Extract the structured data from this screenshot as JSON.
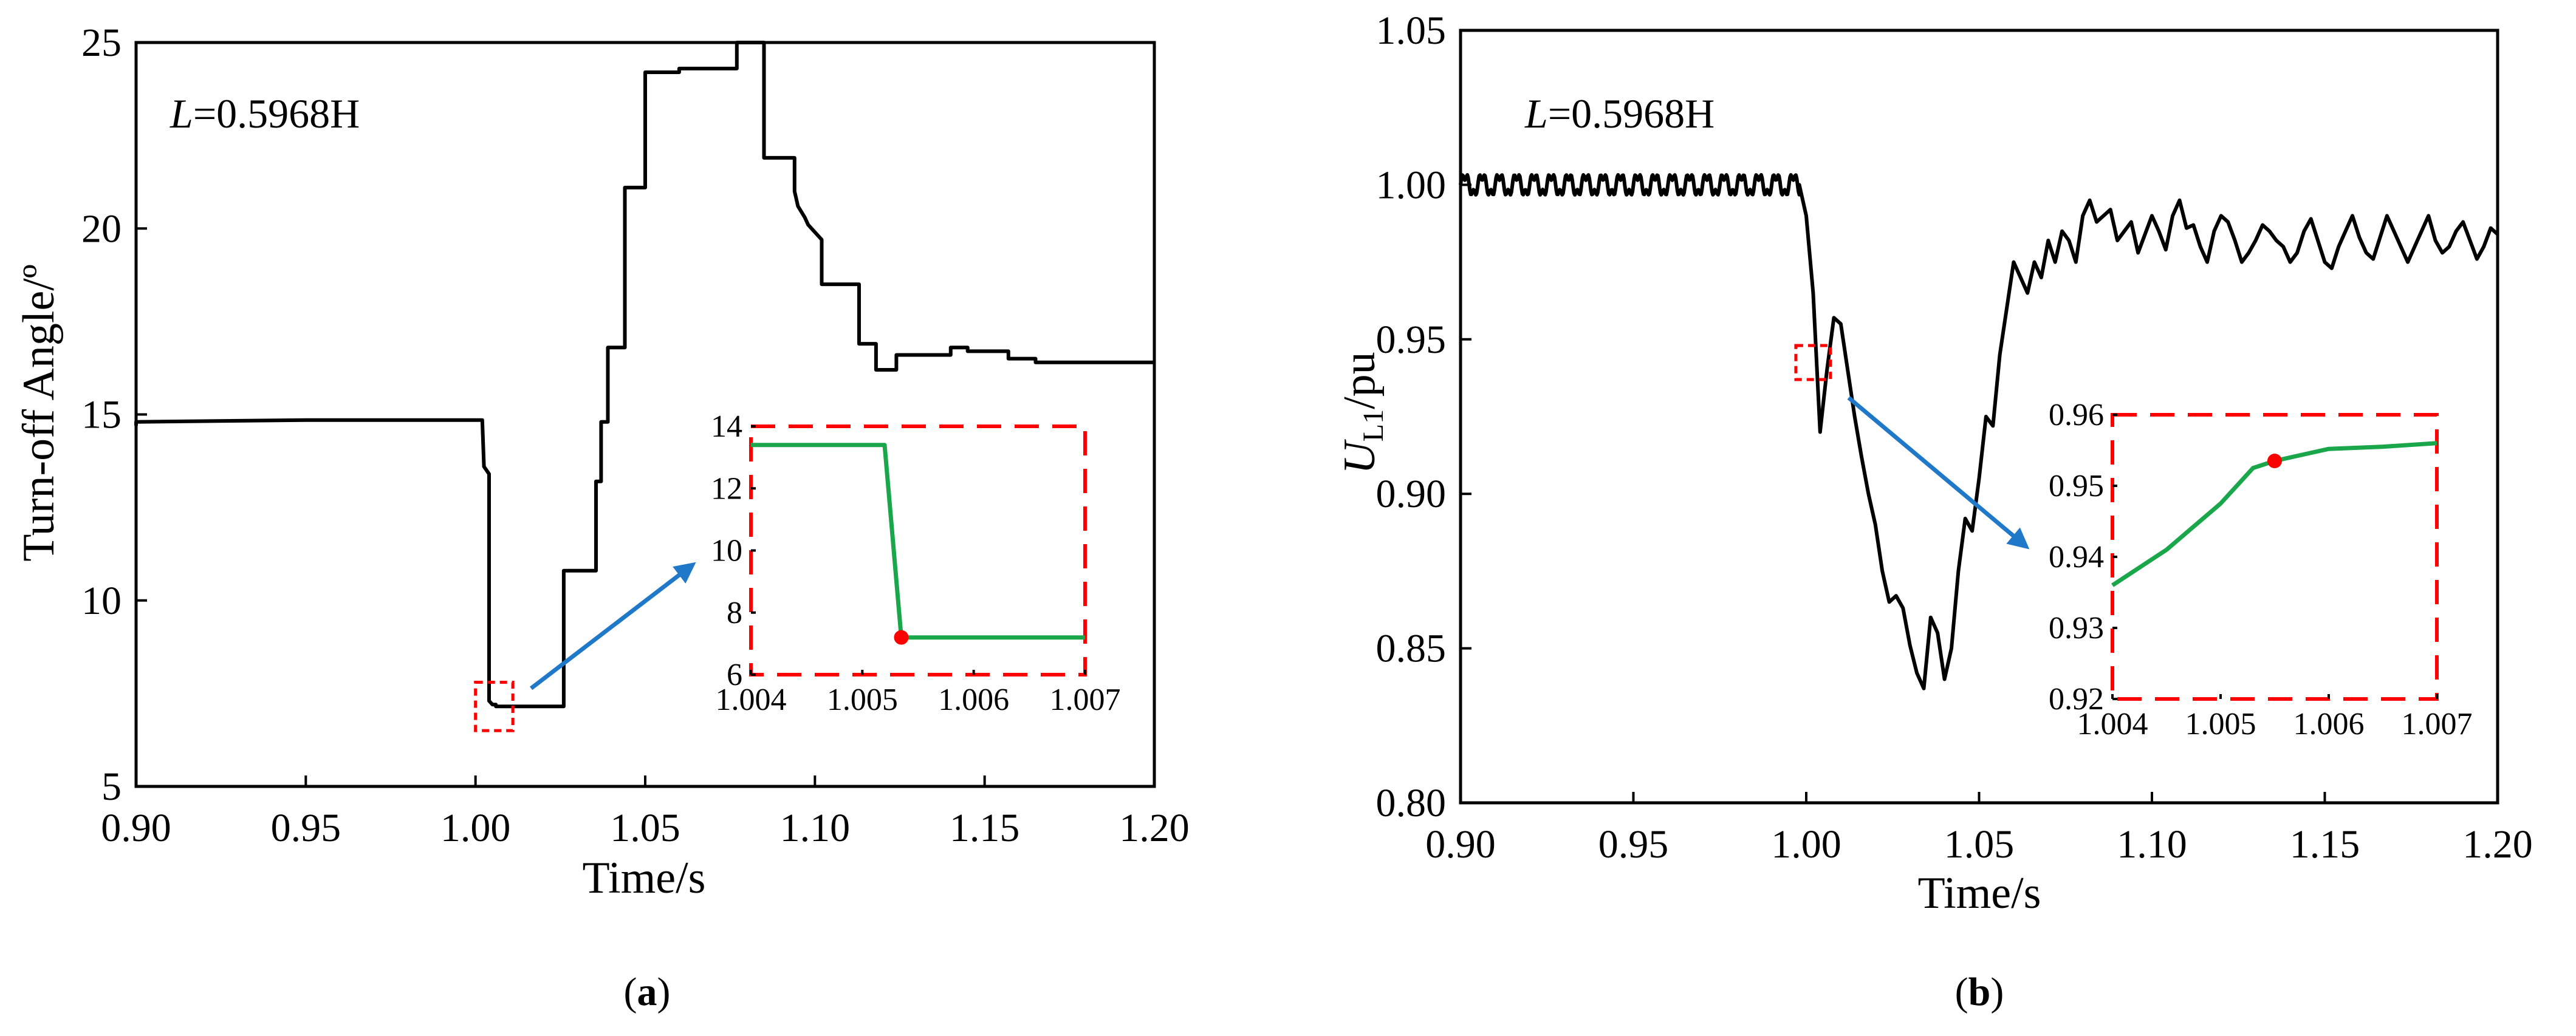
{
  "chart_data": [
    {
      "type": "line",
      "panel_label_prefix": "(",
      "panel_label": "a",
      "panel_label_suffix": ")",
      "annotation_var": "L",
      "annotation_val": "=0.5968H",
      "xlabel": "Time/s",
      "ylabel": "Turn-off Angle/º",
      "xlim": [
        0.9,
        1.2
      ],
      "ylim": [
        5,
        25
      ],
      "x_ticks": [
        "0.90",
        "0.95",
        "1.00",
        "1.05",
        "1.10",
        "1.15",
        "1.20"
      ],
      "y_ticks": [
        "5",
        "10",
        "15",
        "20",
        "25"
      ],
      "series_color": "#000000",
      "series": [
        {
          "x": [
            0.9,
            0.9,
            0.95,
            1.002,
            1.0025,
            1.004,
            1.004,
            1.005,
            1.006,
            1.006,
            1.016,
            1.016,
            1.026,
            1.026,
            1.0355,
            1.0355,
            1.037,
            1.037,
            1.039,
            1.039,
            1.044,
            1.044,
            1.05,
            1.05,
            1.06,
            1.06,
            1.077,
            1.077,
            1.085,
            1.085,
            1.094,
            1.094,
            1.095,
            1.097,
            1.098,
            1.1,
            1.102,
            1.102,
            1.113,
            1.113,
            1.118,
            1.118,
            1.124,
            1.124,
            1.14,
            1.14,
            1.145,
            1.145,
            1.157,
            1.157,
            1.165,
            1.165,
            1.2
          ],
          "y": [
            14.7,
            14.8,
            14.85,
            14.85,
            13.6,
            13.4,
            7.3,
            7.2,
            7.2,
            7.15,
            7.15,
            7.15,
            7.15,
            10.8,
            10.8,
            13.2,
            13.2,
            14.8,
            14.8,
            16.8,
            16.8,
            21.1,
            21.1,
            24.2,
            24.2,
            24.3,
            24.3,
            25.0,
            25.0,
            21.9,
            21.9,
            21.0,
            20.6,
            20.3,
            20.1,
            19.9,
            19.7,
            18.5,
            18.5,
            16.9,
            16.9,
            16.2,
            16.2,
            16.6,
            16.6,
            16.8,
            16.8,
            16.7,
            16.7,
            16.5,
            16.5,
            16.4,
            16.4
          ]
        }
      ],
      "zoom_box": {
        "x": [
          1.0,
          1.011
        ],
        "y": [
          6.5,
          7.8
        ]
      },
      "inset": {
        "xlim": [
          1.004,
          1.007
        ],
        "ylim": [
          6,
          14
        ],
        "x_ticks": [
          "1.004",
          "1.005",
          "1.006",
          "1.007"
        ],
        "y_ticks": [
          "6",
          "8",
          "10",
          "12",
          "14"
        ],
        "x": [
          1.004,
          1.0052,
          1.00535,
          1.007
        ],
        "y": [
          13.4,
          13.4,
          7.2,
          7.2
        ],
        "marker": {
          "x": 1.00535,
          "y": 7.2
        },
        "line_color": "#1aa64a",
        "marker_color": "#ff0000",
        "frame_color": "#ff0000"
      },
      "arrow_color": "#1f78c8"
    },
    {
      "type": "line",
      "panel_label_prefix": "(",
      "panel_label": "b",
      "panel_label_suffix": ")",
      "annotation_var": "L",
      "annotation_val": "=0.5968H",
      "xlabel": "Time/s",
      "ylabel_main": "U",
      "ylabel_sub": "L1",
      "ylabel_rest": "/pu",
      "xlim": [
        0.9,
        1.2
      ],
      "ylim": [
        0.8,
        1.05
      ],
      "x_ticks": [
        "0.90",
        "0.95",
        "1.00",
        "1.05",
        "1.10",
        "1.15",
        "1.20"
      ],
      "y_ticks": [
        "0.80",
        "0.85",
        "0.90",
        "0.95",
        "1.00",
        "1.05"
      ],
      "series_color": "#000000",
      "series": [
        {
          "x": [
            0.998,
            1.0,
            1.002,
            1.004,
            1.006,
            1.008,
            1.01,
            1.012,
            1.014,
            1.016,
            1.018,
            1.02,
            1.022,
            1.024,
            1.026,
            1.028,
            1.03,
            1.032,
            1.034,
            1.036,
            1.038,
            1.04,
            1.042,
            1.044,
            1.046,
            1.048,
            1.05,
            1.052,
            1.054,
            1.056,
            1.058,
            1.06,
            1.062,
            1.064,
            1.066,
            1.068,
            1.07,
            1.072,
            1.074,
            1.076,
            1.078,
            1.08,
            1.082,
            1.084,
            1.086,
            1.088,
            1.09,
            1.092,
            1.094,
            1.096,
            1.098,
            1.1,
            1.102,
            1.104,
            1.106,
            1.108,
            1.11,
            1.112,
            1.114,
            1.116,
            1.118,
            1.12,
            1.122,
            1.124,
            1.126,
            1.128,
            1.13,
            1.132,
            1.134,
            1.136,
            1.138,
            1.14,
            1.142,
            1.144,
            1.146,
            1.148,
            1.15,
            1.152,
            1.154,
            1.156,
            1.158,
            1.16,
            1.162,
            1.164,
            1.166,
            1.168,
            1.17,
            1.172,
            1.174,
            1.176,
            1.178,
            1.18,
            1.182,
            1.184,
            1.186,
            1.188,
            1.19,
            1.192,
            1.194,
            1.196,
            1.198,
            1.2
          ],
          "y": [
            1.0,
            0.99,
            0.965,
            0.92,
            0.94,
            0.957,
            0.955,
            0.94,
            0.925,
            0.912,
            0.9,
            0.89,
            0.875,
            0.865,
            0.867,
            0.863,
            0.851,
            0.842,
            0.837,
            0.86,
            0.855,
            0.84,
            0.85,
            0.875,
            0.892,
            0.888,
            0.905,
            0.925,
            0.922,
            0.945,
            0.96,
            0.975,
            0.97,
            0.965,
            0.975,
            0.97,
            0.982,
            0.975,
            0.985,
            0.982,
            0.975,
            0.99,
            0.995,
            0.988,
            0.99,
            0.992,
            0.982,
            0.985,
            0.988,
            0.978,
            0.984,
            0.99,
            0.985,
            0.979,
            0.99,
            0.995,
            0.986,
            0.987,
            0.98,
            0.975,
            0.985,
            0.99,
            0.988,
            0.982,
            0.975,
            0.978,
            0.982,
            0.987,
            0.985,
            0.982,
            0.98,
            0.975,
            0.978,
            0.985,
            0.989,
            0.982,
            0.975,
            0.973,
            0.98,
            0.985,
            0.99,
            0.983,
            0.978,
            0.976,
            0.983,
            0.99,
            0.985,
            0.98,
            0.975,
            0.98,
            0.985,
            0.99,
            0.982,
            0.978,
            0.98,
            0.985,
            0.988,
            0.982,
            0.976,
            0.98,
            0.986,
            0.984
          ]
        }
      ],
      "pre_fault": {
        "x_start": 0.9,
        "x_end": 0.998,
        "level": 1.0,
        "ripple": 0.003,
        "period": 0.005
      },
      "zoom_box": {
        "x": [
          0.997,
          1.007
        ],
        "y": [
          0.937,
          0.948
        ]
      },
      "inset": {
        "xlim": [
          1.004,
          1.007
        ],
        "ylim": [
          0.92,
          0.96
        ],
        "x_ticks": [
          "1.004",
          "1.005",
          "1.006",
          "1.007"
        ],
        "y_ticks": [
          "0.92",
          "0.93",
          "0.94",
          "0.95",
          "0.96"
        ],
        "x": [
          1.004,
          1.0045,
          1.005,
          1.0053,
          1.0055,
          1.006,
          1.0065,
          1.007
        ],
        "y": [
          0.936,
          0.941,
          0.9475,
          0.9525,
          0.9535,
          0.9552,
          0.9555,
          0.956
        ],
        "marker": {
          "x": 1.0055,
          "y": 0.9535
        },
        "line_color": "#1aa64a",
        "marker_color": "#ff0000",
        "frame_color": "#ff0000"
      },
      "arrow_color": "#1f78c8"
    }
  ]
}
